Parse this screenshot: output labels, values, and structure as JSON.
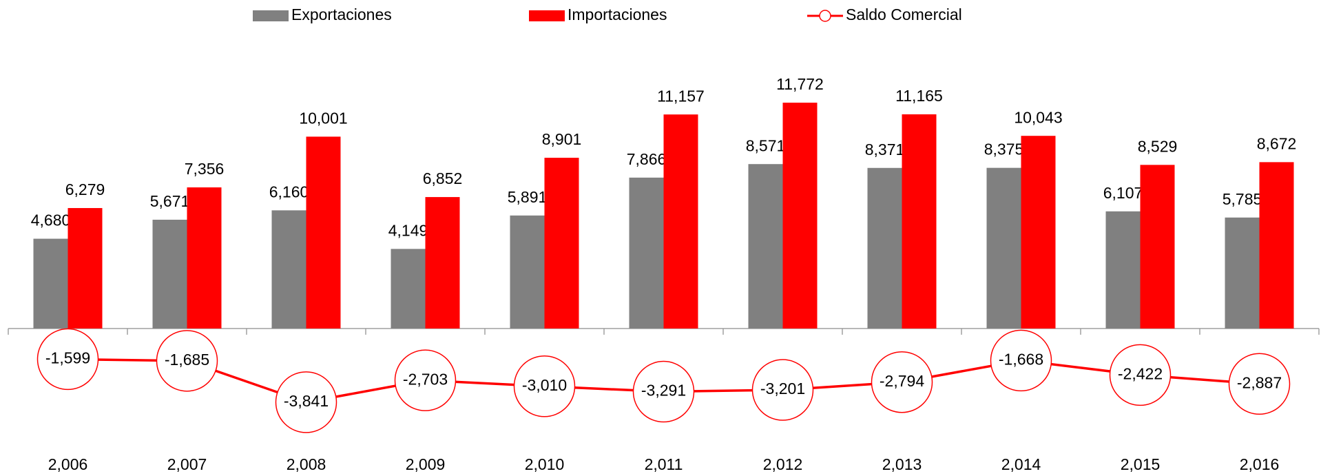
{
  "chart_data": {
    "type": "bar",
    "categories": [
      "2,006",
      "2,007",
      "2,008",
      "2,009",
      "2,010",
      "2,011",
      "2,012",
      "2,013",
      "2,014",
      "2,015",
      "2,016"
    ],
    "series": [
      {
        "name": "Exportaciones",
        "color": "#808080",
        "type": "bar",
        "values": [
          4680,
          5671,
          6160,
          4149,
          5891,
          7866,
          8571,
          8371,
          8375,
          6107,
          5785
        ],
        "value_labels": [
          "4,680",
          "5,671",
          "6,160",
          "4,149",
          "5,891",
          "7,866",
          "8,571",
          "8,371",
          "8,375",
          "6,107",
          "5,785"
        ]
      },
      {
        "name": "Importaciones",
        "color": "#ff0000",
        "type": "bar",
        "values": [
          6279,
          7356,
          10001,
          6852,
          8901,
          11157,
          11772,
          11165,
          10043,
          8529,
          8672
        ],
        "value_labels": [
          "6,279",
          "7,356",
          "10,001",
          "6,852",
          "8,901",
          "11,157",
          "11,772",
          "11,165",
          "10,043",
          "8,529",
          "8,672"
        ]
      },
      {
        "name": "Saldo Comercial",
        "color": "#ff0000",
        "type": "line",
        "values": [
          -1599,
          -1685,
          -3841,
          -2703,
          -3010,
          -3291,
          -3201,
          -2794,
          -1668,
          -2422,
          -2887
        ],
        "value_labels": [
          "-1,599",
          "-1,685",
          "-3,841",
          "-2,703",
          "-3,010",
          "-3,291",
          "-3,201",
          "-2,794",
          "-1,668",
          "-2,422",
          "-2,887"
        ]
      }
    ],
    "ylim": [
      -6000,
      14000
    ],
    "legend": "top"
  }
}
